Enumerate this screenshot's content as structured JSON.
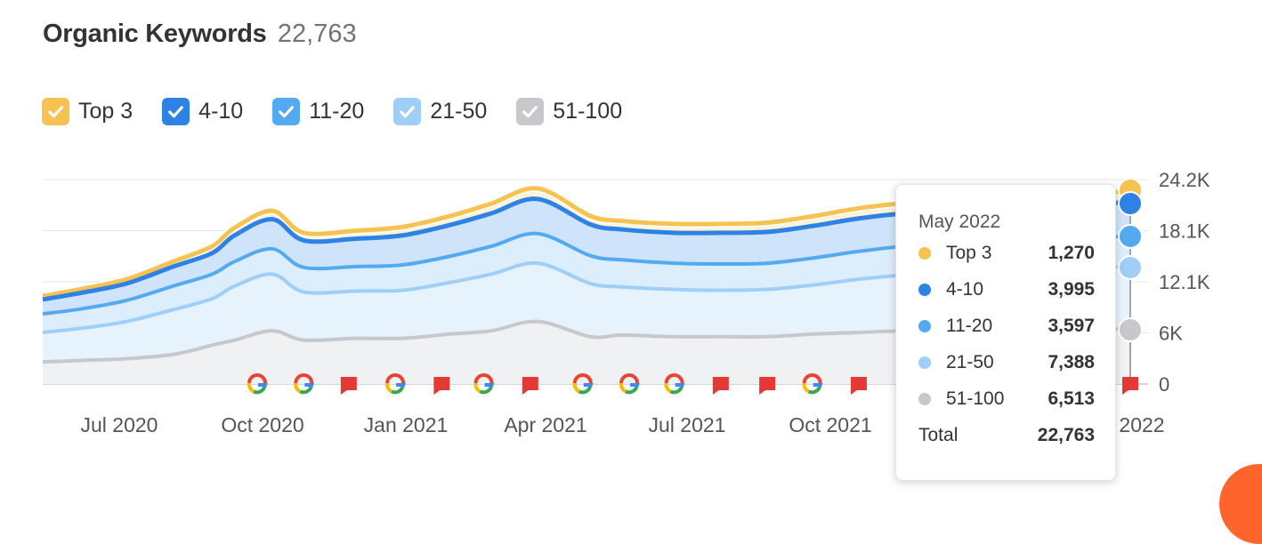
{
  "header": {
    "title": "Organic Keywords",
    "total": "22,763"
  },
  "legend": [
    {
      "label": "Top 3",
      "color": "#f6c353"
    },
    {
      "label": "4-10",
      "color": "#2f82e5"
    },
    {
      "label": "11-20",
      "color": "#54aaf0"
    },
    {
      "label": "21-50",
      "color": "#9fcef7"
    },
    {
      "label": "51-100",
      "color": "#c6c8cc"
    }
  ],
  "icons": {
    "google": "google-g-icon",
    "flag": "red-flag-icon",
    "check": "check-icon"
  },
  "colors": {
    "top3": "#f6c353",
    "r4_10": "#2f82e5",
    "r11_20": "#54aaf0",
    "r21_50": "#9fcef7",
    "r51_100": "#c6c8cc",
    "flag": "#e53935",
    "accent": "#ff642d"
  },
  "tooltip": {
    "date": "May 2022",
    "rows": [
      {
        "name": "Top 3",
        "value": "1,270",
        "color": "#f6c353"
      },
      {
        "name": "4-10",
        "value": "3,995",
        "color": "#2f82e5"
      },
      {
        "name": "11-20",
        "value": "3,597",
        "color": "#54aaf0"
      },
      {
        "name": "21-50",
        "value": "7,388",
        "color": "#9fcef7"
      },
      {
        "name": "51-100",
        "value": "6,513",
        "color": "#c6c8cc"
      }
    ],
    "total_label": "Total",
    "total_value": "22,763"
  },
  "chart_data": {
    "type": "area",
    "stacked": true,
    "x": [
      "2020-05-20",
      "2020-06-15",
      "2020-07-15",
      "2020-08-15",
      "2020-09-10",
      "2020-09-25",
      "2020-10-20",
      "2020-11-10",
      "2020-12-15",
      "2021-01-15",
      "2021-02-15",
      "2021-03-15",
      "2021-04-15",
      "2021-05-20",
      "2021-06-10",
      "2021-07-15",
      "2021-08-15",
      "2021-09-15",
      "2021-10-15",
      "2021-11-15",
      "2021-12-15",
      "2022-01-15",
      "2022-02-15",
      "2022-03-15",
      "2022-04-15",
      "2022-05-15"
    ],
    "x_ticks": [
      "Jul 2020",
      "Oct 2020",
      "Jan 2021",
      "Apr 2021",
      "Jul 2021",
      "Oct 2021",
      "2022"
    ],
    "y_ticks": [
      "0",
      "6K",
      "12.1K",
      "18.1K",
      "24.2K"
    ],
    "ylim": [
      0,
      24200
    ],
    "grid": true,
    "series": [
      {
        "name": "51-100",
        "values": [
          2600,
          2800,
          3000,
          3500,
          4600,
          5200,
          6300,
          5200,
          5400,
          5400,
          5900,
          6300,
          7400,
          5600,
          5800,
          5600,
          5600,
          5600,
          5900,
          6100,
          6300,
          6400,
          6400,
          6500,
          6500,
          6513
        ]
      },
      {
        "name": "21-50",
        "values": [
          3500,
          3800,
          4400,
          5300,
          5500,
          6400,
          6700,
          5700,
          5600,
          5700,
          6100,
          6700,
          6900,
          6300,
          5700,
          5600,
          5500,
          5600,
          5800,
          6300,
          6600,
          6800,
          7000,
          7200,
          7300,
          7388
        ]
      },
      {
        "name": "11-20",
        "values": [
          2200,
          2300,
          2500,
          2800,
          2900,
          2900,
          3000,
          2900,
          2900,
          3000,
          3100,
          3300,
          3500,
          3300,
          3200,
          3100,
          3100,
          3100,
          3200,
          3300,
          3400,
          3400,
          3500,
          3500,
          3550,
          3597
        ]
      },
      {
        "name": "4-10",
        "values": [
          1700,
          1900,
          2000,
          2300,
          2500,
          3100,
          3500,
          3200,
          3300,
          3500,
          3700,
          3900,
          4100,
          3700,
          3600,
          3600,
          3700,
          3700,
          3800,
          3900,
          3900,
          3950,
          3950,
          3980,
          3990,
          3995
        ]
      },
      {
        "name": "Top 3",
        "values": [
          400,
          450,
          500,
          600,
          800,
          900,
          1000,
          900,
          950,
          1000,
          1050,
          1150,
          1250,
          1000,
          1000,
          1050,
          1050,
          1100,
          1150,
          1200,
          1200,
          1220,
          1240,
          1250,
          1260,
          1270
        ]
      }
    ],
    "events": [
      {
        "date": "2020-10-10",
        "type": "google"
      },
      {
        "date": "2020-11-10",
        "type": "google"
      },
      {
        "date": "2020-12-10",
        "type": "flag"
      },
      {
        "date": "2021-01-10",
        "type": "google"
      },
      {
        "date": "2021-02-10",
        "type": "flag"
      },
      {
        "date": "2021-03-10",
        "type": "google"
      },
      {
        "date": "2021-04-10",
        "type": "flag"
      },
      {
        "date": "2021-05-15",
        "type": "google"
      },
      {
        "date": "2021-06-15",
        "type": "google"
      },
      {
        "date": "2021-07-15",
        "type": "google"
      },
      {
        "date": "2021-08-15",
        "type": "flag"
      },
      {
        "date": "2021-09-15",
        "type": "flag"
      },
      {
        "date": "2021-10-15",
        "type": "google"
      },
      {
        "date": "2021-11-15",
        "type": "flag"
      },
      {
        "date": "2022-05-15",
        "type": "flag"
      }
    ],
    "highlight_date": "2022-05-15"
  }
}
